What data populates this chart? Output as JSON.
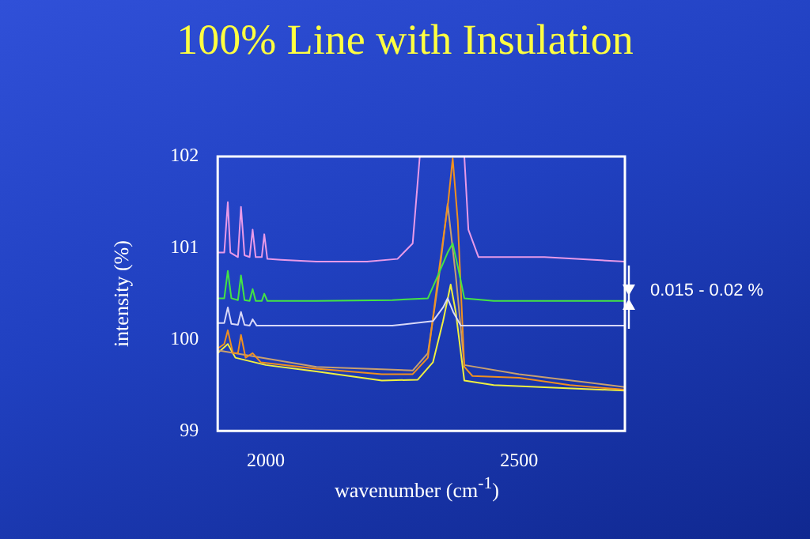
{
  "chart_data": {
    "type": "line",
    "title": "100% Line with Insulation",
    "xlabel": "wavenumber (cm$^{-1}$)",
    "ylabel": "intensity (%)",
    "xlim": [
      1905,
      2709
    ],
    "xticks": [
      2000,
      2500
    ],
    "ylim": [
      99,
      102
    ],
    "yticks": [
      99,
      100,
      101,
      102
    ],
    "grid": false,
    "legend": false,
    "marker": "none",
    "line_style": "solid",
    "annotations": [
      "0.015 - 0.02 %"
    ],
    "series": [
      {
        "color": "#e89ae8",
        "x": [
          1905,
          1918,
          1925,
          1930,
          1945,
          1951,
          1958,
          1968,
          1974,
          1980,
          1992,
          1997,
          2003,
          2030,
          2100,
          2200,
          2260,
          2290,
          2304,
          2350,
          2392,
          2400,
          2420,
          2550,
          2709
        ],
        "values": [
          100.95,
          100.95,
          101.5,
          100.95,
          100.9,
          101.45,
          100.92,
          100.9,
          101.2,
          100.9,
          100.9,
          101.15,
          100.88,
          100.87,
          100.85,
          100.85,
          100.88,
          101.05,
          102,
          null,
          102,
          101.2,
          100.9,
          100.9,
          100.85
        ]
      },
      {
        "color": "#44e444",
        "x": [
          1905,
          1918,
          1925,
          1932,
          1945,
          1951,
          1958,
          1968,
          1974,
          1980,
          1992,
          1997,
          2003,
          2100,
          2250,
          2320,
          2340,
          2359,
          2369,
          2379,
          2392,
          2450,
          2709
        ],
        "values": [
          100.45,
          100.45,
          100.75,
          100.45,
          100.43,
          100.7,
          100.43,
          100.42,
          100.55,
          100.42,
          100.42,
          100.5,
          100.42,
          100.42,
          100.43,
          100.45,
          100.7,
          100.95,
          101.05,
          100.8,
          100.45,
          100.42,
          100.42
        ]
      },
      {
        "color": "#d8d8f8",
        "x": [
          1905,
          1918,
          1925,
          1932,
          1945,
          1951,
          1958,
          1968,
          1974,
          1982,
          2100,
          2250,
          2330,
          2350,
          2359,
          2370,
          2385,
          2450,
          2709
        ],
        "values": [
          100.18,
          100.18,
          100.35,
          100.17,
          100.16,
          100.3,
          100.16,
          100.15,
          100.22,
          100.15,
          100.15,
          100.15,
          100.2,
          100.35,
          100.45,
          100.3,
          100.15,
          100.15,
          100.15
        ]
      },
      {
        "color": "#f09020",
        "x": [
          1905,
          1918,
          1925,
          1935,
          1945,
          1951,
          1960,
          1974,
          1990,
          2100,
          2229,
          2290,
          2320,
          2343,
          2360,
          2369,
          2379,
          2392,
          2408,
          2500,
          2600,
          2709
        ],
        "values": [
          99.9,
          99.95,
          100.1,
          99.85,
          99.85,
          100.05,
          99.8,
          99.85,
          99.75,
          99.68,
          99.62,
          99.62,
          99.8,
          100.8,
          101.5,
          101.98,
          101.3,
          99.7,
          99.6,
          99.58,
          99.5,
          99.45
        ]
      },
      {
        "color": "#c8a070",
        "x": [
          1905,
          2100,
          2290,
          2320,
          2340,
          2359,
          2375,
          2392,
          2500,
          2709
        ],
        "values": [
          99.88,
          99.7,
          99.66,
          99.85,
          100.6,
          101.48,
          100.7,
          99.72,
          99.62,
          99.48
        ]
      },
      {
        "color": "#f0f040",
        "x": [
          1905,
          1925,
          1940,
          2000,
          2100,
          2229,
          2300,
          2330,
          2350,
          2365,
          2375,
          2392,
          2450,
          2709
        ],
        "values": [
          99.85,
          99.95,
          99.8,
          99.72,
          99.65,
          99.55,
          99.56,
          99.75,
          100.2,
          100.6,
          100.3,
          99.55,
          99.5,
          99.44
        ]
      }
    ]
  }
}
